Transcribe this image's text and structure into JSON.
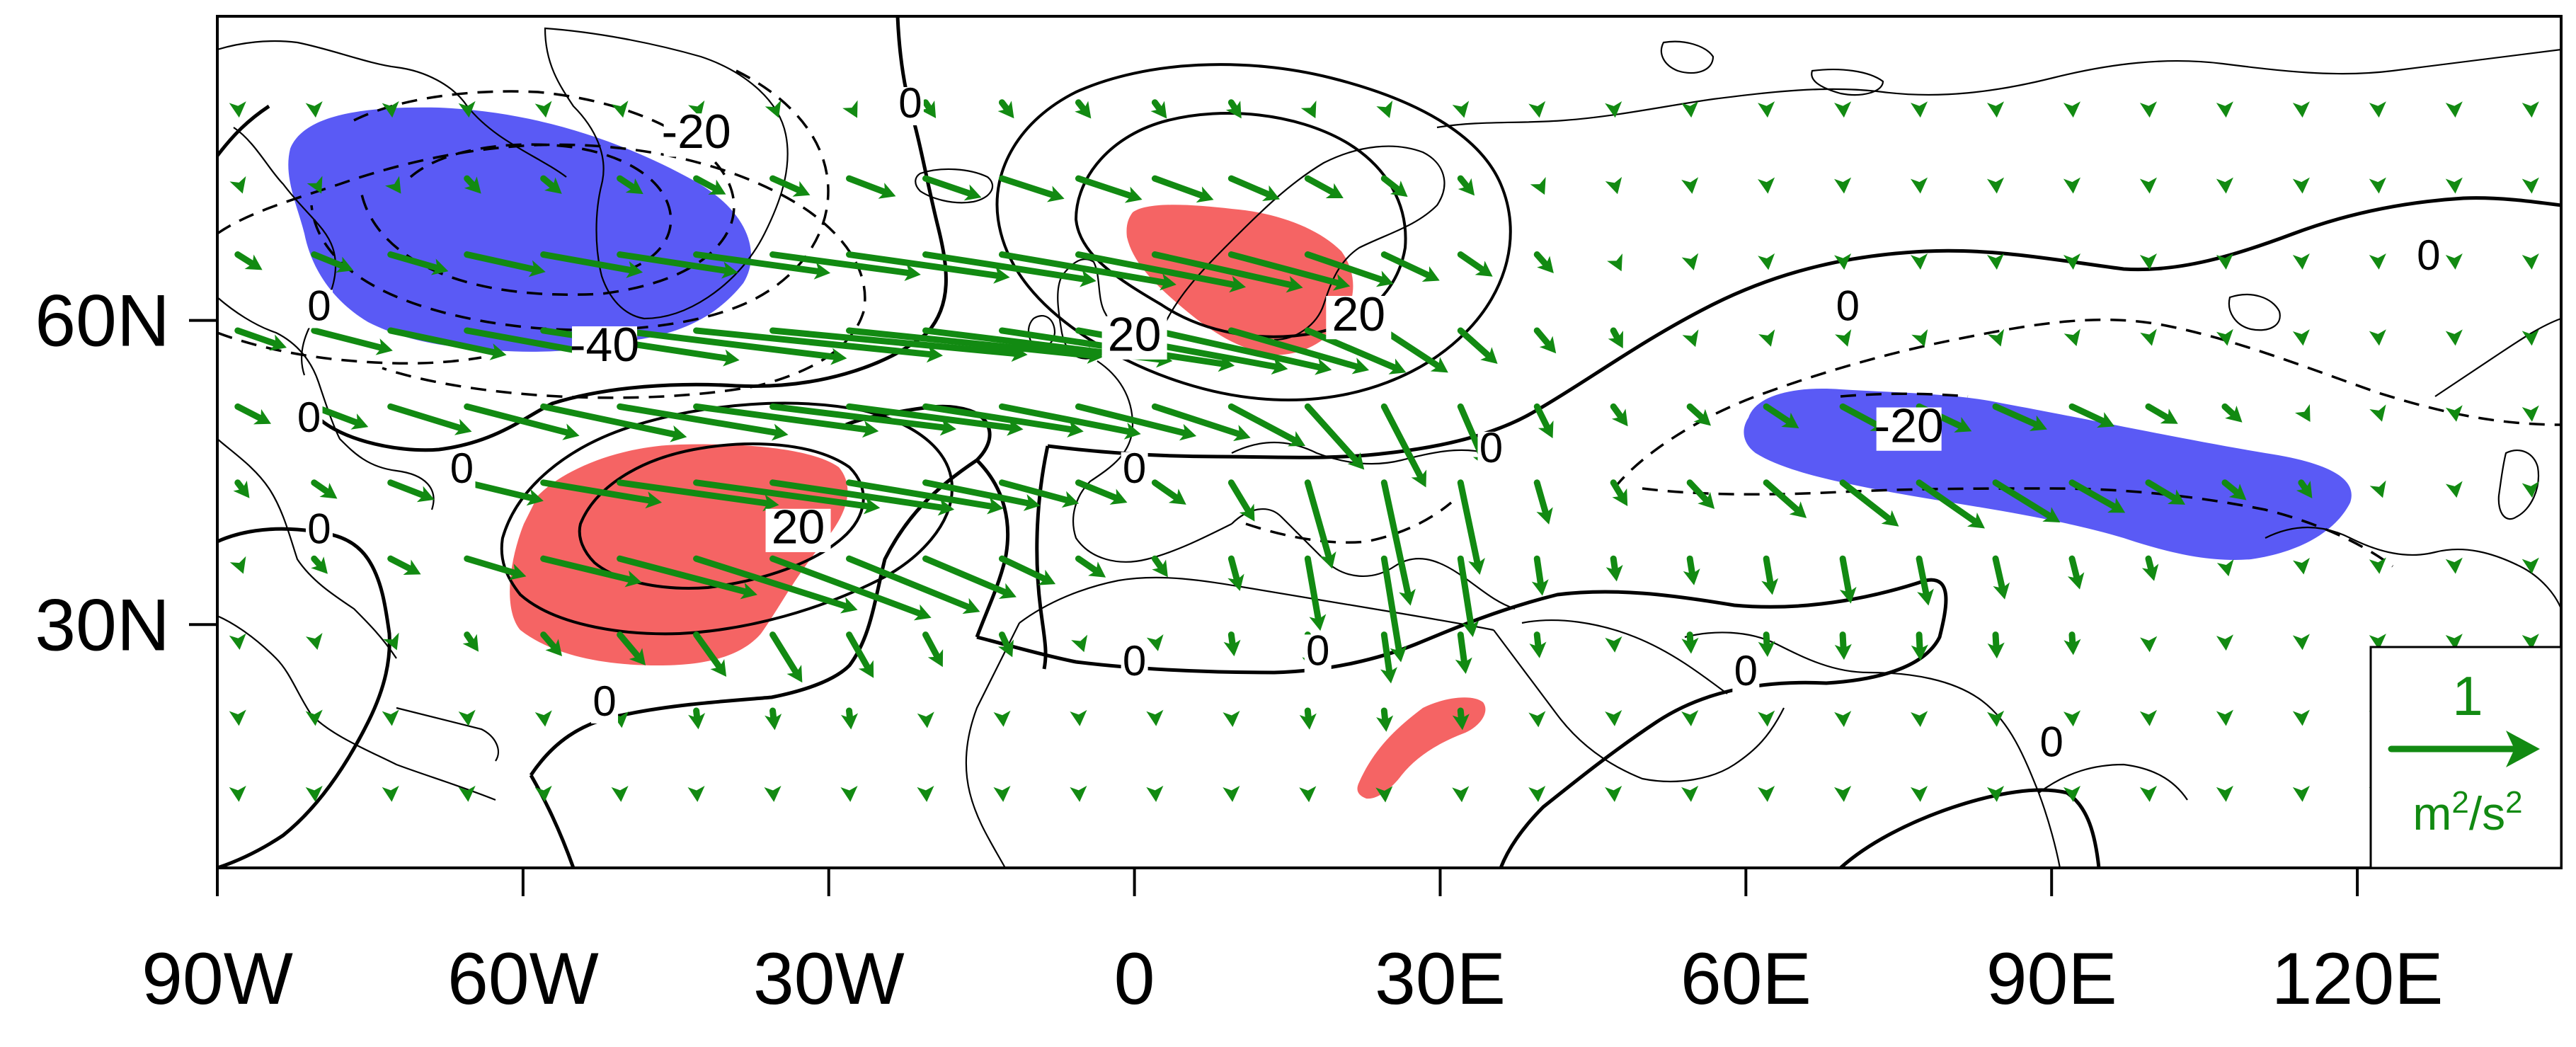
{
  "chart_data": {
    "type": "map",
    "projection": "cylindrical equidistant",
    "lon_range": [
      -90,
      140
    ],
    "lat_range": [
      6,
      90
    ],
    "x_ticks": [
      {
        "lon": -90,
        "label": "90W"
      },
      {
        "lon": -60,
        "label": "60W"
      },
      {
        "lon": -30,
        "label": "30W"
      },
      {
        "lon": 0,
        "label": "0"
      },
      {
        "lon": 30,
        "label": "30E"
      },
      {
        "lon": 60,
        "label": "60E"
      },
      {
        "lon": 90,
        "label": "90E"
      },
      {
        "lon": 120,
        "label": "120E"
      }
    ],
    "y_ticks": [
      {
        "lat": 60,
        "label": "60N"
      },
      {
        "lat": 30,
        "label": "30N"
      }
    ],
    "contour_labels": [
      {
        "text": "-20",
        "lon": -43,
        "lat": 77
      },
      {
        "text": "-40",
        "lon": -52,
        "lat": 56
      },
      {
        "text": "20",
        "lon": -33,
        "lat": 38
      },
      {
        "text": "20",
        "lon": 0,
        "lat": 57
      },
      {
        "text": "20",
        "lon": 22,
        "lat": 59
      },
      {
        "text": "-20",
        "lon": 76,
        "lat": 48
      },
      {
        "text": "0",
        "lon": -22,
        "lat": 80
      },
      {
        "text": "0",
        "lon": -80,
        "lat": 60
      },
      {
        "text": "0",
        "lon": -81,
        "lat": 49
      },
      {
        "text": "0",
        "lon": -66,
        "lat": 44
      },
      {
        "text": "0",
        "lon": -80,
        "lat": 38
      },
      {
        "text": "0",
        "lon": -52,
        "lat": 21
      },
      {
        "text": "0",
        "lon": 0,
        "lat": 44
      },
      {
        "text": "0",
        "lon": 0,
        "lat": 25
      },
      {
        "text": "0",
        "lon": 18,
        "lat": 26
      },
      {
        "text": "0",
        "lon": 35,
        "lat": 46
      },
      {
        "text": "0",
        "lon": 70,
        "lat": 60
      },
      {
        "text": "0",
        "lon": 60,
        "lat": 24
      },
      {
        "text": "0",
        "lon": 90,
        "lat": 17
      },
      {
        "text": "0",
        "lon": 127,
        "lat": 65
      }
    ],
    "shaded_regions": [
      {
        "sign": "negative",
        "color": "#5a5af5",
        "center_lon": -55,
        "center_lat": 67
      },
      {
        "sign": "negative",
        "color": "#5a5af5",
        "center_lon": 90,
        "center_lat": 43
      },
      {
        "sign": "positive",
        "color": "#f56464",
        "center_lon": -46,
        "center_lat": 37
      },
      {
        "sign": "positive",
        "color": "#f56464",
        "center_lon": 12,
        "center_lat": 59
      },
      {
        "sign": "positive",
        "color": "#f56464",
        "center_lon": 28,
        "center_lat": 20
      }
    ],
    "flux_vectors": {
      "color": "#128a12",
      "grid_spacing_deg": 7.5,
      "reference_vector": {
        "magnitude": "1",
        "units": "m2/s2"
      }
    },
    "legend": {
      "value": "1",
      "unit_main": "m",
      "unit_exp1": "2",
      "unit_sep": "/s",
      "unit_exp2": "2",
      "placement": "bottom-right"
    }
  },
  "colors": {
    "positive_fill": "#f56464",
    "negative_fill": "#5a5af5",
    "vector": "#128a12",
    "contour": "#000000",
    "coast": "#000000"
  }
}
